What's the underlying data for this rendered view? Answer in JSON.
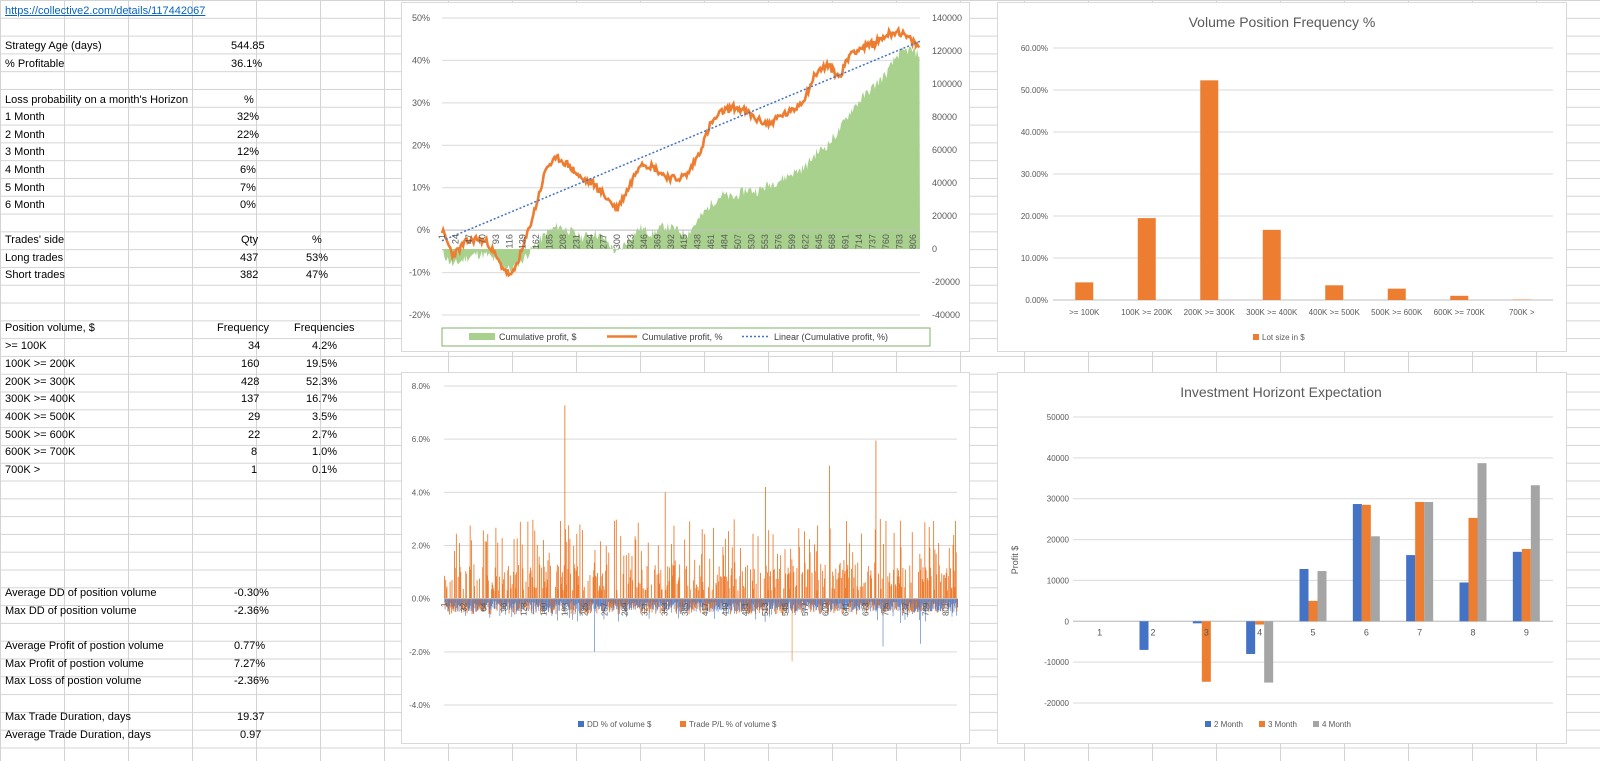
{
  "sheet": {
    "link": "https://collective2.com/details/117442067",
    "strategy_age_label": "Strategy Age (days)",
    "strategy_age": "544.85",
    "profitable_label": "% Profitable",
    "profitable": "36.1%",
    "loss_prob_label": "Loss probability on a month's Horizon",
    "loss_prob_unit": "%",
    "loss_prob": [
      {
        "label": "1 Month",
        "value": "32%"
      },
      {
        "label": "2 Month",
        "value": "22%"
      },
      {
        "label": "3 Month",
        "value": "12%"
      },
      {
        "label": "4 Month",
        "value": "6%"
      },
      {
        "label": "5 Month",
        "value": "7%"
      },
      {
        "label": "6 Month",
        "value": "0%"
      }
    ],
    "trades_side_label": "Trades' side",
    "qty_header": "Qty",
    "pct_header": "%",
    "long_label": "Long trades",
    "long_qty": "437",
    "long_pct": "53%",
    "short_label": "Short trades",
    "short_qty": "382",
    "short_pct": "47%",
    "pos_vol_label": "Position volume, $",
    "freq_header": "Frequency",
    "freqs_header": "Frequencies",
    "pos_vol": [
      {
        "label": ">= 100K",
        "freq": "34",
        "pct": "4.2%"
      },
      {
        "label": "100K >= 200K",
        "freq": "160",
        "pct": "19.5%"
      },
      {
        "label": "200K >= 300K",
        "freq": "428",
        "pct": "52.3%"
      },
      {
        "label": "300K >= 400K",
        "freq": "137",
        "pct": "16.7%"
      },
      {
        "label": "400K >= 500K",
        "freq": "29",
        "pct": "3.5%"
      },
      {
        "label": "500K >= 600K",
        "freq": "22",
        "pct": "2.7%"
      },
      {
        "label": "600K >= 700K",
        "freq": "8",
        "pct": "1.0%"
      },
      {
        "label": "700K >",
        "freq": "1",
        "pct": "0.1%"
      }
    ],
    "avg_dd_label": "Average DD of position volume",
    "avg_dd": "-0.30%",
    "max_dd_label": "Max DD of position volume",
    "max_dd": "-2.36%",
    "avg_profit_label": "Average Profit of postion volume",
    "avg_profit": "0.77%",
    "max_profit_label": "Max Profit of postion volume",
    "max_profit": "7.27%",
    "max_loss_label": "Max Loss of postion volume",
    "max_loss": "-2.36%",
    "max_dur_label": "Max Trade Duration, days",
    "max_dur": "19.37",
    "avg_dur_label": "Average Trade Duration, days",
    "avg_dur": "0.97"
  },
  "chart_data": [
    {
      "type": "area",
      "id": "cumulative",
      "title": "",
      "x_ticks": [
        "1",
        "24",
        "47",
        "70",
        "93",
        "116",
        "139",
        "162",
        "185",
        "208",
        "231",
        "254",
        "277",
        "300",
        "323",
        "346",
        "369",
        "392",
        "415",
        "438",
        "461",
        "484",
        "507",
        "530",
        "553",
        "576",
        "599",
        "622",
        "645",
        "668",
        "691",
        "714",
        "737",
        "760",
        "783",
        "806"
      ],
      "ylim_left": [
        -0.2,
        0.5
      ],
      "yticks_left": [
        "50%",
        "40%",
        "30%",
        "20%",
        "10%",
        "0%",
        "-10%",
        "-20%"
      ],
      "ylim_right": [
        -40000,
        140000
      ],
      "yticks_right": [
        "140000",
        "120000",
        "100000",
        "80000",
        "60000",
        "40000",
        "20000",
        "0",
        "-20000",
        "-40000"
      ],
      "x_max": 818,
      "series": [
        {
          "name": "Cumulative profit, $",
          "color": "#a9d18e",
          "axis": "right",
          "x": [
            1,
            20,
            40,
            60,
            80,
            100,
            120,
            140,
            160,
            180,
            200,
            220,
            240,
            260,
            280,
            300,
            320,
            340,
            360,
            380,
            400,
            420,
            440,
            460,
            480,
            500,
            520,
            540,
            560,
            580,
            600,
            620,
            640,
            660,
            680,
            700,
            720,
            740,
            760,
            780,
            800,
            818
          ],
          "values": [
            -2000,
            -10000,
            -6000,
            -3000,
            -4000,
            -9000,
            -13000,
            -6000,
            2000,
            10000,
            14000,
            11000,
            7000,
            10000,
            6000,
            -3000,
            6000,
            13000,
            9000,
            14000,
            12000,
            9000,
            18000,
            27000,
            33000,
            31000,
            36000,
            35000,
            39000,
            42000,
            46000,
            49000,
            58000,
            63000,
            72000,
            84000,
            92000,
            99000,
            106000,
            118000,
            121000,
            118000
          ]
        },
        {
          "name": "Cumulative profit, %",
          "color": "#ed7d31",
          "axis": "left",
          "x": [
            1,
            20,
            40,
            60,
            80,
            100,
            120,
            140,
            160,
            180,
            200,
            220,
            240,
            260,
            280,
            300,
            320,
            340,
            360,
            380,
            400,
            420,
            440,
            460,
            480,
            500,
            520,
            540,
            560,
            580,
            600,
            620,
            640,
            660,
            680,
            700,
            720,
            740,
            760,
            780,
            800,
            818
          ],
          "values": [
            0.0,
            -0.06,
            -0.03,
            -0.02,
            -0.03,
            -0.08,
            -0.11,
            -0.04,
            0.05,
            0.15,
            0.17,
            0.15,
            0.12,
            0.11,
            0.08,
            0.05,
            0.1,
            0.16,
            0.15,
            0.13,
            0.12,
            0.13,
            0.18,
            0.25,
            0.28,
            0.29,
            0.28,
            0.26,
            0.25,
            0.27,
            0.28,
            0.31,
            0.37,
            0.39,
            0.36,
            0.42,
            0.43,
            0.44,
            0.46,
            0.47,
            0.45,
            0.43
          ]
        },
        {
          "name": "Linear (Cumulative profit, %)",
          "color": "#4472c4",
          "axis": "left",
          "style": "dotted",
          "x": [
            1,
            818
          ],
          "values": [
            -0.025,
            0.445
          ]
        }
      ],
      "legend": "bottom"
    },
    {
      "type": "bar",
      "id": "volume_freq",
      "title": "Volume Position Frequency %",
      "categories": [
        ">= 100K",
        "100K >= 200K",
        "200K >= 300K",
        "300K >= 400K",
        "400K >= 500K",
        "500K >= 600K",
        "600K >= 700K",
        "700K >"
      ],
      "series": [
        {
          "name": "Lot size in $",
          "color": "#ed7d31",
          "values": [
            0.042,
            0.195,
            0.523,
            0.167,
            0.035,
            0.027,
            0.01,
            0.001
          ]
        }
      ],
      "ylim": [
        0,
        0.6
      ],
      "yticks": [
        "0.00%",
        "10.00%",
        "20.00%",
        "30.00%",
        "40.00%",
        "50.00%",
        "60.00%"
      ],
      "legend": "bottom"
    },
    {
      "type": "bar",
      "id": "dd_pl",
      "title": "",
      "x_ticks": [
        "1",
        "32",
        "64",
        "96",
        "128",
        "160",
        "193",
        "225",
        "257",
        "289",
        "321",
        "353",
        "385",
        "417",
        "449",
        "481",
        "513",
        "545",
        "577",
        "609",
        "641",
        "673",
        "705",
        "737",
        "769",
        "801"
      ],
      "ylim": [
        -0.04,
        0.08
      ],
      "yticks": [
        "8.0%",
        "6.0%",
        "4.0%",
        "2.0%",
        "0.0%",
        "-2.0%",
        "-4.0%"
      ],
      "x_max": 819,
      "series": [
        {
          "name": "DD % of volume $",
          "color": "#4472c4"
        },
        {
          "name": "Trade P/L % of volume $",
          "color": "#ed7d31"
        }
      ],
      "peaks": [
        {
          "x": 193,
          "value": 0.0727
        },
        {
          "x": 689,
          "value": 0.0595
        },
        {
          "x": 615,
          "value": 0.05
        },
        {
          "x": 513,
          "value": 0.042
        },
        {
          "x": 353,
          "value": 0.04
        },
        {
          "x": 555,
          "value": -0.0236
        },
        {
          "x": 240,
          "value": -0.02
        },
        {
          "x": 700,
          "value": -0.018
        },
        {
          "x": 760,
          "value": -0.017
        }
      ],
      "legend": "bottom"
    },
    {
      "type": "bar",
      "id": "horizon",
      "title": "Investment Horizont Expectation",
      "ylabel": "Profit $",
      "categories": [
        "1",
        "2",
        "3",
        "4",
        "5",
        "6",
        "7",
        "8",
        "9"
      ],
      "ylim": [
        -20000,
        50000
      ],
      "yticks": [
        "50000",
        "40000",
        "30000",
        "20000",
        "10000",
        "0",
        "-10000",
        "-20000"
      ],
      "series": [
        {
          "name": "2 Month",
          "color": "#4472c4",
          "values": [
            0,
            -7000,
            -500,
            -8000,
            12800,
            28700,
            16200,
            9500,
            17000
          ]
        },
        {
          "name": "3 Month",
          "color": "#ed7d31",
          "values": [
            0,
            0,
            -14800,
            -800,
            5000,
            28500,
            29200,
            25300,
            17700
          ]
        },
        {
          "name": "4 Month",
          "color": "#a5a5a5",
          "values": [
            0,
            0,
            0,
            -15000,
            12300,
            20800,
            29200,
            38700,
            33300
          ]
        }
      ],
      "legend": "bottom"
    }
  ]
}
